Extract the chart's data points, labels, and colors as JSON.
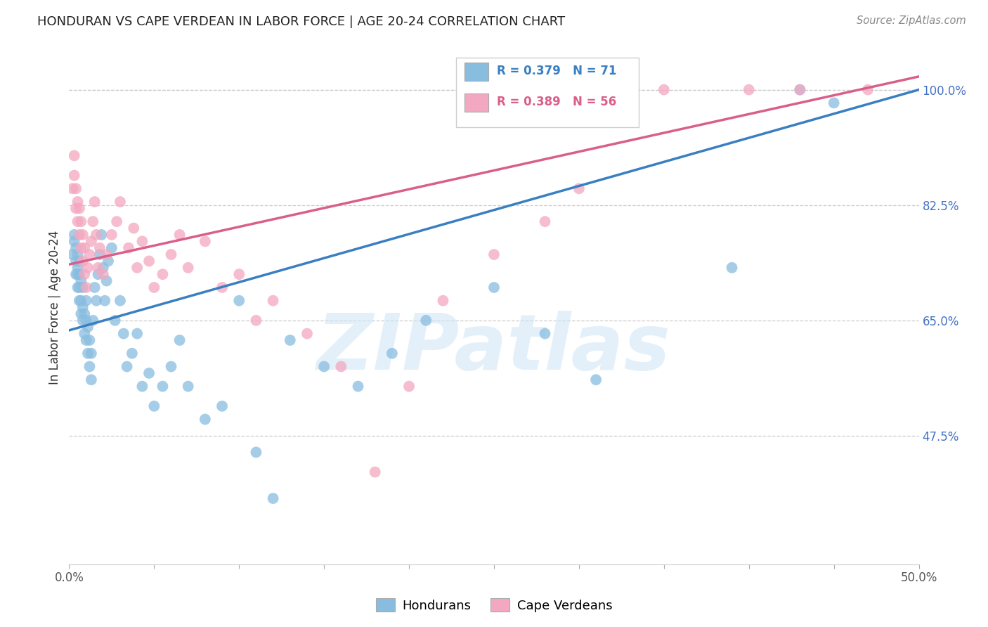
{
  "title": "HONDURAN VS CAPE VERDEAN IN LABOR FORCE | AGE 20-24 CORRELATION CHART",
  "source": "Source: ZipAtlas.com",
  "ylabel": "In Labor Force | Age 20-24",
  "x_min": 0.0,
  "x_max": 0.5,
  "y_min": 0.28,
  "y_max": 1.06,
  "yticks": [
    0.475,
    0.65,
    0.825,
    1.0
  ],
  "ytick_labels": [
    "47.5%",
    "65.0%",
    "82.5%",
    "100.0%"
  ],
  "blue_color": "#89bde0",
  "pink_color": "#f4a7c0",
  "blue_line_color": "#3a7fc1",
  "pink_line_color": "#d95f8a",
  "blue_R": 0.379,
  "blue_N": 71,
  "pink_R": 0.389,
  "pink_N": 56,
  "legend_blue_label": "Hondurans",
  "legend_pink_label": "Cape Verdeans",
  "watermark": "ZIPatlas",
  "blue_line_x0": 0.0,
  "blue_line_y0": 0.635,
  "blue_line_x1": 0.5,
  "blue_line_y1": 1.0,
  "pink_line_x0": 0.0,
  "pink_line_y0": 0.735,
  "pink_line_x1": 0.5,
  "pink_line_y1": 1.02,
  "hon_x": [
    0.002,
    0.003,
    0.003,
    0.004,
    0.004,
    0.004,
    0.005,
    0.005,
    0.005,
    0.005,
    0.006,
    0.006,
    0.006,
    0.006,
    0.007,
    0.007,
    0.007,
    0.008,
    0.008,
    0.008,
    0.009,
    0.009,
    0.01,
    0.01,
    0.01,
    0.011,
    0.011,
    0.012,
    0.012,
    0.013,
    0.013,
    0.014,
    0.015,
    0.016,
    0.017,
    0.018,
    0.019,
    0.02,
    0.021,
    0.022,
    0.023,
    0.025,
    0.027,
    0.03,
    0.032,
    0.034,
    0.037,
    0.04,
    0.043,
    0.047,
    0.05,
    0.055,
    0.06,
    0.065,
    0.07,
    0.08,
    0.09,
    0.1,
    0.11,
    0.12,
    0.13,
    0.15,
    0.17,
    0.19,
    0.21,
    0.25,
    0.28,
    0.31,
    0.39,
    0.43,
    0.45
  ],
  "hon_y": [
    0.75,
    0.77,
    0.78,
    0.72,
    0.74,
    0.76,
    0.7,
    0.72,
    0.73,
    0.75,
    0.68,
    0.7,
    0.72,
    0.74,
    0.66,
    0.68,
    0.71,
    0.65,
    0.67,
    0.7,
    0.63,
    0.66,
    0.62,
    0.65,
    0.68,
    0.6,
    0.64,
    0.58,
    0.62,
    0.56,
    0.6,
    0.65,
    0.7,
    0.68,
    0.72,
    0.75,
    0.78,
    0.73,
    0.68,
    0.71,
    0.74,
    0.76,
    0.65,
    0.68,
    0.63,
    0.58,
    0.6,
    0.63,
    0.55,
    0.57,
    0.52,
    0.55,
    0.58,
    0.62,
    0.55,
    0.5,
    0.52,
    0.68,
    0.45,
    0.38,
    0.62,
    0.58,
    0.55,
    0.6,
    0.65,
    0.7,
    0.63,
    0.56,
    0.73,
    1.0,
    0.98
  ],
  "cv_x": [
    0.002,
    0.003,
    0.003,
    0.004,
    0.004,
    0.005,
    0.005,
    0.006,
    0.006,
    0.007,
    0.007,
    0.008,
    0.008,
    0.009,
    0.009,
    0.01,
    0.011,
    0.012,
    0.013,
    0.014,
    0.015,
    0.016,
    0.017,
    0.018,
    0.02,
    0.022,
    0.025,
    0.028,
    0.03,
    0.035,
    0.038,
    0.04,
    0.043,
    0.047,
    0.05,
    0.055,
    0.06,
    0.065,
    0.07,
    0.08,
    0.09,
    0.1,
    0.11,
    0.12,
    0.14,
    0.16,
    0.18,
    0.2,
    0.22,
    0.25,
    0.28,
    0.3,
    0.35,
    0.4,
    0.43,
    0.47
  ],
  "cv_y": [
    0.85,
    0.87,
    0.9,
    0.82,
    0.85,
    0.8,
    0.83,
    0.78,
    0.82,
    0.76,
    0.8,
    0.74,
    0.78,
    0.72,
    0.76,
    0.7,
    0.73,
    0.75,
    0.77,
    0.8,
    0.83,
    0.78,
    0.73,
    0.76,
    0.72,
    0.75,
    0.78,
    0.8,
    0.83,
    0.76,
    0.79,
    0.73,
    0.77,
    0.74,
    0.7,
    0.72,
    0.75,
    0.78,
    0.73,
    0.77,
    0.7,
    0.72,
    0.65,
    0.68,
    0.63,
    0.58,
    0.42,
    0.55,
    0.68,
    0.75,
    0.8,
    0.85,
    1.0,
    1.0,
    1.0,
    1.0
  ]
}
